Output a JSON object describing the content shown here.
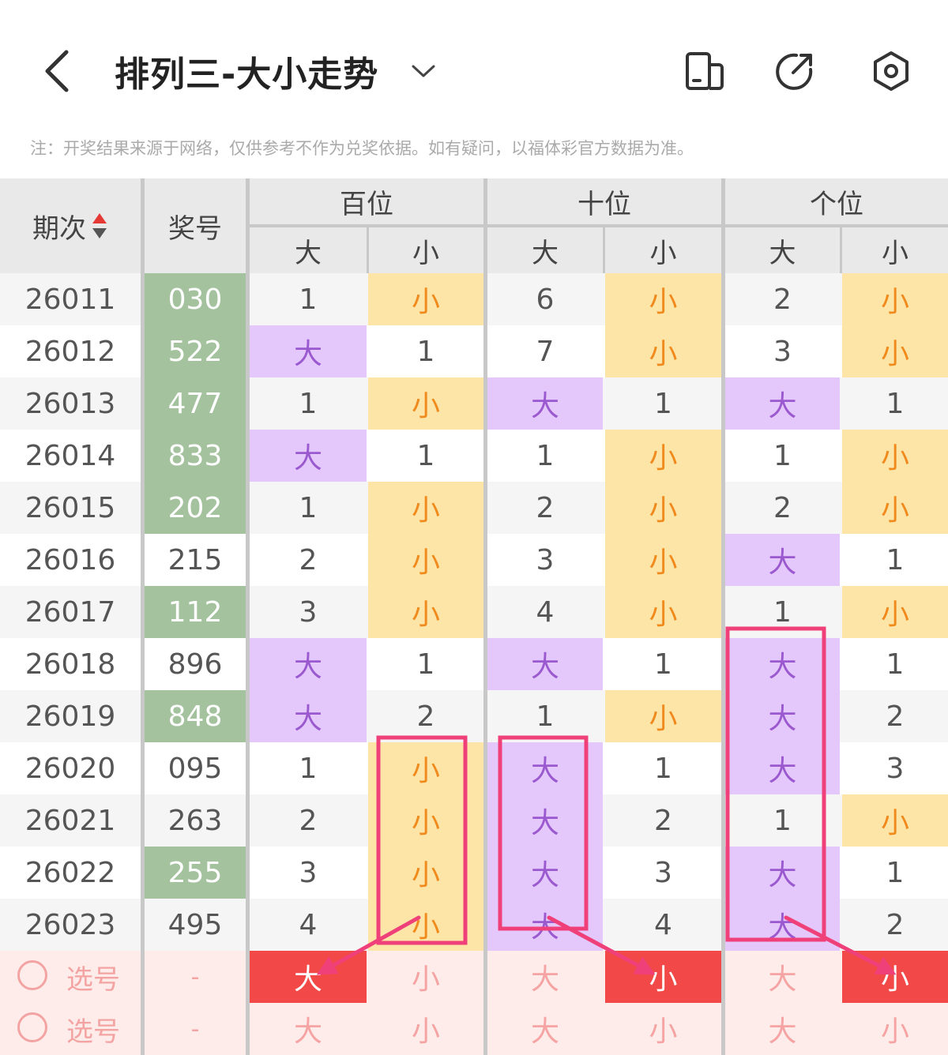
{
  "header": {
    "title": "排列三-大小走势",
    "icons": [
      "back-icon",
      "chevron-down-icon",
      "device-switch-icon",
      "share-icon",
      "settings-icon"
    ]
  },
  "note": "注：开奖结果来源于网络，仅供参考不作为兑奖依据。如有疑问，以福体彩官方数据为准。",
  "table": {
    "col_issue": "期次",
    "col_number": "奖号",
    "groups": [
      "百位",
      "十位",
      "个位"
    ],
    "sub": [
      "大",
      "小"
    ],
    "rows": [
      {
        "issue": "26011",
        "number": "030",
        "hit": true,
        "cells": [
          "1",
          "小",
          "6",
          "小",
          "2",
          "小"
        ]
      },
      {
        "issue": "26012",
        "number": "522",
        "hit": true,
        "cells": [
          "大",
          "1",
          "7",
          "小",
          "3",
          "小"
        ]
      },
      {
        "issue": "26013",
        "number": "477",
        "hit": true,
        "cells": [
          "1",
          "小",
          "大",
          "1",
          "大",
          "1"
        ]
      },
      {
        "issue": "26014",
        "number": "833",
        "hit": true,
        "cells": [
          "大",
          "1",
          "1",
          "小",
          "1",
          "小"
        ]
      },
      {
        "issue": "26015",
        "number": "202",
        "hit": true,
        "cells": [
          "1",
          "小",
          "2",
          "小",
          "2",
          "小"
        ]
      },
      {
        "issue": "26016",
        "number": "215",
        "hit": false,
        "cells": [
          "2",
          "小",
          "3",
          "小",
          "大",
          "1"
        ]
      },
      {
        "issue": "26017",
        "number": "112",
        "hit": true,
        "cells": [
          "3",
          "小",
          "4",
          "小",
          "1",
          "小"
        ]
      },
      {
        "issue": "26018",
        "number": "896",
        "hit": false,
        "cells": [
          "大",
          "1",
          "大",
          "1",
          "大",
          "1"
        ]
      },
      {
        "issue": "26019",
        "number": "848",
        "hit": true,
        "cells": [
          "大",
          "2",
          "1",
          "小",
          "大",
          "2"
        ]
      },
      {
        "issue": "26020",
        "number": "095",
        "hit": false,
        "cells": [
          "1",
          "小",
          "大",
          "1",
          "大",
          "3"
        ]
      },
      {
        "issue": "26021",
        "number": "263",
        "hit": false,
        "cells": [
          "2",
          "小",
          "大",
          "2",
          "1",
          "小"
        ]
      },
      {
        "issue": "26022",
        "number": "255",
        "hit": true,
        "cells": [
          "3",
          "小",
          "大",
          "3",
          "大",
          "1"
        ]
      },
      {
        "issue": "26023",
        "number": "495",
        "hit": false,
        "cells": [
          "4",
          "小",
          "大",
          "4",
          "大",
          "2"
        ]
      }
    ],
    "select_rows": [
      {
        "label": "选号",
        "dash": "-",
        "cells": [
          "大",
          "小",
          "大",
          "小",
          "大",
          "小"
        ],
        "selected": [
          0,
          3,
          5
        ]
      },
      {
        "label": "选号",
        "dash": "-",
        "cells": [
          "大",
          "小",
          "大",
          "小",
          "大",
          "小"
        ],
        "selected": []
      }
    ]
  },
  "colors": {
    "big": "#e4c8fb",
    "small": "#fde5a8",
    "hit": "#a5c29f",
    "selected": "#f24848",
    "annotation": "#f0407a"
  }
}
